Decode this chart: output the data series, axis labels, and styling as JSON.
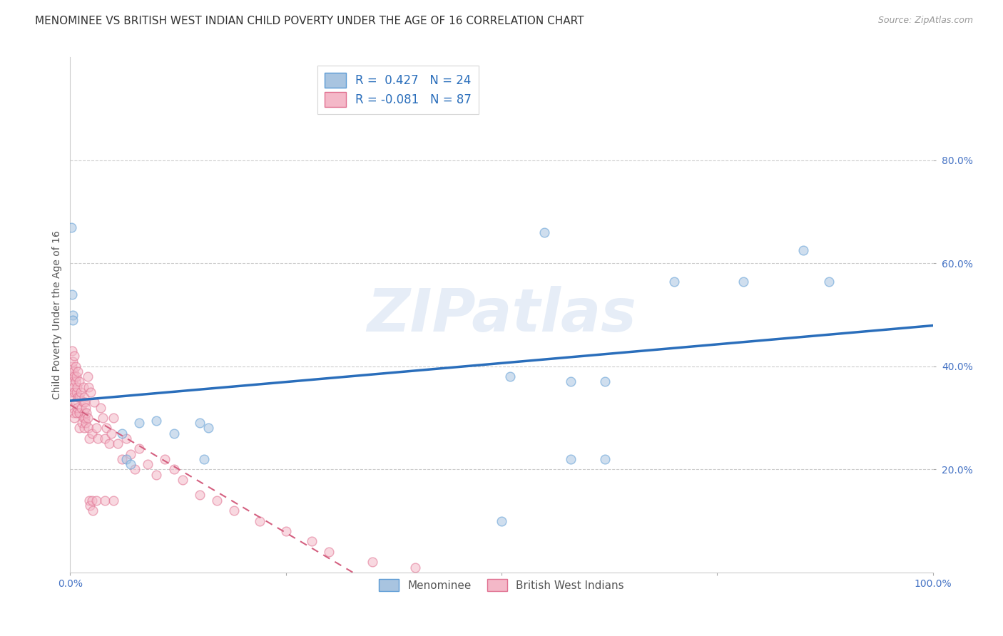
{
  "title": "MENOMINEE VS BRITISH WEST INDIAN CHILD POVERTY UNDER THE AGE OF 16 CORRELATION CHART",
  "source": "Source: ZipAtlas.com",
  "ylabel": "Child Poverty Under the Age of 16",
  "xlim": [
    0,
    1.0
  ],
  "ylim": [
    0,
    1.0
  ],
  "xtick_positions": [
    0.0,
    0.25,
    0.5,
    0.75,
    1.0
  ],
  "xticklabels": [
    "0.0%",
    "",
    "",
    "",
    "100.0%"
  ],
  "ytick_positions": [
    0.2,
    0.4,
    0.6,
    0.8
  ],
  "ytick_labels": [
    "20.0%",
    "40.0%",
    "60.0%",
    "80.0%"
  ],
  "menominee_color": "#a8c4e0",
  "menominee_edge": "#5b9bd5",
  "bwi_color": "#f4b8c8",
  "bwi_edge": "#e07090",
  "blue_line_color": "#2a6ebb",
  "pink_line_color": "#d46080",
  "watermark": "ZIPatlas",
  "menominee_R": 0.427,
  "menominee_N": 24,
  "bwi_R": -0.081,
  "bwi_N": 87,
  "menominee_scatter_x": [
    0.002,
    0.003,
    0.001,
    0.003,
    0.06,
    0.065,
    0.07,
    0.08,
    0.1,
    0.12,
    0.15,
    0.155,
    0.16,
    0.5,
    0.51,
    0.55,
    0.58,
    0.58,
    0.62,
    0.62,
    0.7,
    0.78,
    0.85,
    0.88
  ],
  "menominee_scatter_y": [
    0.54,
    0.5,
    0.67,
    0.49,
    0.27,
    0.22,
    0.21,
    0.29,
    0.295,
    0.27,
    0.29,
    0.22,
    0.28,
    0.1,
    0.38,
    0.66,
    0.37,
    0.22,
    0.37,
    0.22,
    0.565,
    0.565,
    0.625,
    0.565
  ],
  "bwi_scatter_x": [
    0.001,
    0.001,
    0.002,
    0.002,
    0.003,
    0.003,
    0.003,
    0.003,
    0.004,
    0.004,
    0.004,
    0.005,
    0.005,
    0.005,
    0.005,
    0.006,
    0.006,
    0.006,
    0.007,
    0.007,
    0.007,
    0.008,
    0.008,
    0.009,
    0.009,
    0.01,
    0.01,
    0.01,
    0.01,
    0.012,
    0.013,
    0.014,
    0.015,
    0.015,
    0.015,
    0.016,
    0.016,
    0.016,
    0.017,
    0.017,
    0.018,
    0.018,
    0.019,
    0.02,
    0.02,
    0.021,
    0.021,
    0.022,
    0.022,
    0.023,
    0.024,
    0.025,
    0.025,
    0.026,
    0.028,
    0.03,
    0.03,
    0.032,
    0.035,
    0.038,
    0.04,
    0.04,
    0.042,
    0.045,
    0.048,
    0.05,
    0.05,
    0.055,
    0.06,
    0.065,
    0.07,
    0.075,
    0.08,
    0.09,
    0.1,
    0.11,
    0.12,
    0.13,
    0.15,
    0.17,
    0.19,
    0.22,
    0.25,
    0.28,
    0.3,
    0.35,
    0.4
  ],
  "bwi_scatter_y": [
    0.38,
    0.35,
    0.4,
    0.43,
    0.41,
    0.37,
    0.34,
    0.32,
    0.39,
    0.36,
    0.31,
    0.42,
    0.38,
    0.35,
    0.3,
    0.4,
    0.37,
    0.33,
    0.38,
    0.35,
    0.31,
    0.36,
    0.32,
    0.39,
    0.34,
    0.37,
    0.34,
    0.31,
    0.28,
    0.35,
    0.32,
    0.29,
    0.36,
    0.33,
    0.3,
    0.34,
    0.31,
    0.28,
    0.33,
    0.3,
    0.32,
    0.29,
    0.31,
    0.38,
    0.3,
    0.36,
    0.28,
    0.26,
    0.14,
    0.13,
    0.35,
    0.27,
    0.14,
    0.12,
    0.33,
    0.28,
    0.14,
    0.26,
    0.32,
    0.3,
    0.26,
    0.14,
    0.28,
    0.25,
    0.27,
    0.3,
    0.14,
    0.25,
    0.22,
    0.26,
    0.23,
    0.2,
    0.24,
    0.21,
    0.19,
    0.22,
    0.2,
    0.18,
    0.15,
    0.14,
    0.12,
    0.1,
    0.08,
    0.06,
    0.04,
    0.02,
    0.01
  ],
  "marker_size": 85,
  "alpha": 0.55,
  "background_color": "#ffffff",
  "grid_color": "#cccccc",
  "title_fontsize": 11,
  "axis_label_fontsize": 10,
  "tick_fontsize": 10,
  "tick_color": "#4472c4"
}
